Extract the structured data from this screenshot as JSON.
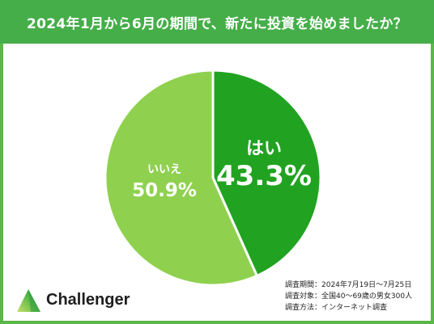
{
  "chart_data": {
    "type": "pie",
    "title": "2024年1月から6月の期間で、新たに投資を始めましたか？",
    "categories": [
      "はい",
      "いいえ"
    ],
    "values": [
      43.3,
      50.9
    ],
    "data_labels": [
      "43.3%",
      "50.9%"
    ],
    "colors": [
      "#21a321",
      "#8fd14f"
    ],
    "legend": "none"
  },
  "survey": {
    "lines": [
      "調査期間：2024年7月19日～7月25日",
      "調査対象：全国40～69歳の男女300人",
      "調査方法：インターネット調査"
    ]
  },
  "logo": {
    "text": "Challenger",
    "icon": "triangle-logo-icon"
  },
  "colors": {
    "header": "#45ae49",
    "frame": "#5ab848"
  }
}
